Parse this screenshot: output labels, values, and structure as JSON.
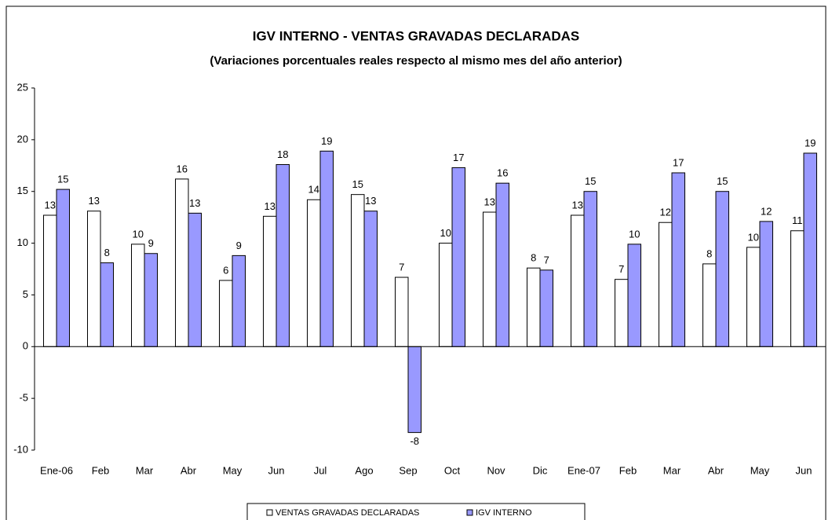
{
  "chart_data": {
    "type": "bar",
    "title": "IGV INTERNO - VENTAS GRAVADAS DECLARADAS",
    "subtitle": "(Variaciones porcentuales reales respecto al mismo mes del año anterior)",
    "categories": [
      "Ene-06",
      "Feb",
      "Mar",
      "Abr",
      "May",
      "Jun",
      "Jul",
      "Ago",
      "Sep",
      "Oct",
      "Nov",
      "Dic",
      "Ene-07",
      "Feb",
      "Mar",
      "Abr",
      "May",
      "Jun"
    ],
    "series": [
      {
        "name": "VENTAS GRAVADAS DECLARADAS",
        "color": "#ffffff",
        "values": [
          12.7,
          13.1,
          9.9,
          16.2,
          6.4,
          12.6,
          14.2,
          14.7,
          6.7,
          10.0,
          13.0,
          7.6,
          12.7,
          6.5,
          12.0,
          8.0,
          9.6,
          11.2
        ],
        "value_labels": [
          "13",
          "13",
          "10",
          "16",
          "6",
          "13",
          "14",
          "15",
          "7",
          "10",
          "13",
          "8",
          "13",
          "7",
          "12",
          "8",
          "10",
          "11"
        ]
      },
      {
        "name": "IGV INTERNO",
        "color": "#9999ff",
        "values": [
          15.2,
          8.1,
          9.0,
          12.9,
          8.8,
          17.6,
          18.9,
          13.1,
          -8.3,
          17.3,
          15.8,
          7.4,
          15.0,
          9.9,
          16.8,
          15.0,
          12.1,
          18.7
        ],
        "value_labels": [
          "15",
          "8",
          "9",
          "13",
          "9",
          "18",
          "19",
          "13",
          "-8",
          "17",
          "16",
          "7",
          "15",
          "10",
          "17",
          "15",
          "12",
          "19"
        ]
      }
    ],
    "ylim": [
      -10,
      25
    ],
    "yticks": [
      -10,
      -5,
      0,
      5,
      10,
      15,
      20,
      25
    ],
    "legend": "bottom"
  }
}
